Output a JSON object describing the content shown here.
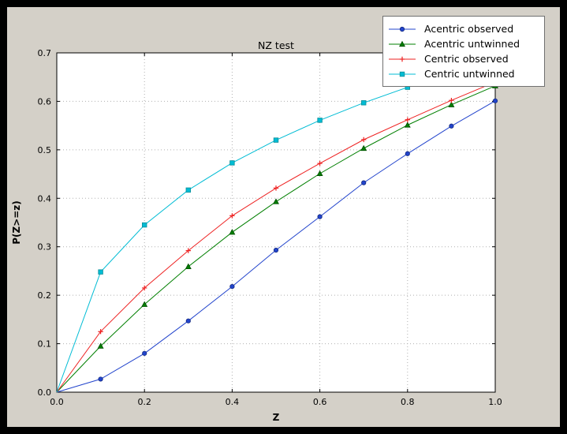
{
  "window": {
    "bg": "#000000",
    "figure_bg": "#d4d0c8",
    "plot_bg": "#ffffff"
  },
  "chart_data": {
    "type": "line",
    "title": "NZ test",
    "xlabel": "Z",
    "ylabel": "P(Z>=z)",
    "xlim": [
      0.0,
      1.0
    ],
    "ylim": [
      0.0,
      0.7
    ],
    "xticks": [
      0.0,
      0.2,
      0.4,
      0.6,
      0.8,
      1.0
    ],
    "yticks": [
      0.0,
      0.1,
      0.2,
      0.3,
      0.4,
      0.5,
      0.6,
      0.7
    ],
    "grid": true,
    "grid_color": "#b0b0b0",
    "legend_position": "upper right",
    "x": [
      0.0,
      0.1,
      0.2,
      0.3,
      0.4,
      0.5,
      0.6,
      0.7,
      0.8,
      0.9,
      1.0
    ],
    "series": [
      {
        "name": "Acentric observed",
        "color": "#2244cc",
        "edge": "#142a80",
        "marker": "circle",
        "values": [
          0.0,
          0.027,
          0.08,
          0.147,
          0.218,
          0.293,
          0.362,
          0.432,
          0.492,
          0.549,
          0.601
        ]
      },
      {
        "name": "Acentric untwinned",
        "color": "#007f00",
        "edge": "#004d00",
        "marker": "triangle",
        "values": [
          0.0,
          0.095,
          0.181,
          0.259,
          0.33,
          0.393,
          0.451,
          0.503,
          0.551,
          0.593,
          0.632
        ]
      },
      {
        "name": "Centric observed",
        "color": "#ee2222",
        "edge": "#a01010",
        "marker": "plus",
        "values": [
          0.0,
          0.125,
          0.215,
          0.292,
          0.364,
          0.421,
          0.472,
          0.521,
          0.562,
          0.602,
          0.64
        ]
      },
      {
        "name": "Centric untwinned",
        "color": "#00bcd4",
        "edge": "#0b8f99",
        "marker": "square",
        "values": [
          0.0,
          0.248,
          0.345,
          0.417,
          0.473,
          0.52,
          0.561,
          0.597,
          0.629,
          0.657,
          0.683
        ]
      }
    ]
  }
}
